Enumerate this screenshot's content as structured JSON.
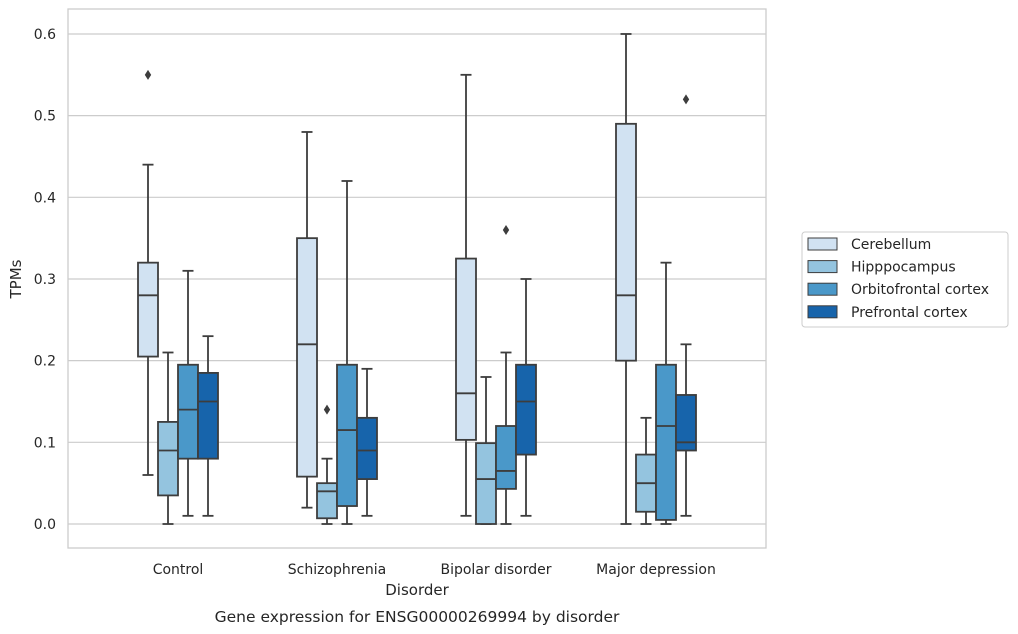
{
  "chart_data": {
    "type": "box",
    "caption": "Gene expression for ENSG00000269994 by disorder",
    "xlabel": "Disorder",
    "ylabel": "TPMs",
    "ylim": [
      -0.03,
      0.63
    ],
    "yticks": [
      0.0,
      0.1,
      0.2,
      0.3,
      0.4,
      0.5,
      0.6
    ],
    "ytick_labels": [
      "0.0",
      "0.1",
      "0.2",
      "0.3",
      "0.4",
      "0.5",
      "0.6"
    ],
    "grid": "horizontal",
    "legend_position": "right",
    "categories": [
      "Control",
      "Schizophrenia",
      "Bipolar disorder",
      "Major depression"
    ],
    "series": [
      {
        "name": "Cerebellum",
        "color": "#d1e2f2",
        "boxes": [
          {
            "whislo": 0.06,
            "q1": 0.205,
            "med": 0.28,
            "q3": 0.32,
            "whishi": 0.44,
            "fliers": [
              0.55
            ]
          },
          {
            "whislo": 0.02,
            "q1": 0.058,
            "med": 0.22,
            "q3": 0.35,
            "whishi": 0.48,
            "fliers": []
          },
          {
            "whislo": 0.01,
            "q1": 0.103,
            "med": 0.16,
            "q3": 0.325,
            "whishi": 0.55,
            "fliers": []
          },
          {
            "whislo": 0.0,
            "q1": 0.2,
            "med": 0.28,
            "q3": 0.49,
            "whishi": 0.6,
            "fliers": []
          }
        ]
      },
      {
        "name": "Hipppocampus",
        "color": "#94c4df",
        "boxes": [
          {
            "whislo": 0.0,
            "q1": 0.035,
            "med": 0.09,
            "q3": 0.125,
            "whishi": 0.21,
            "fliers": []
          },
          {
            "whislo": 0.0,
            "q1": 0.007,
            "med": 0.04,
            "q3": 0.05,
            "whishi": 0.08,
            "fliers": [
              0.14
            ]
          },
          {
            "whislo": 0.0,
            "q1": 0.0,
            "med": 0.055,
            "q3": 0.099,
            "whishi": 0.18,
            "fliers": []
          },
          {
            "whislo": 0.0,
            "q1": 0.015,
            "med": 0.05,
            "q3": 0.085,
            "whishi": 0.13,
            "fliers": []
          }
        ]
      },
      {
        "name": "Orbitofrontal cortex",
        "color": "#4a98c9",
        "boxes": [
          {
            "whislo": 0.01,
            "q1": 0.08,
            "med": 0.14,
            "q3": 0.195,
            "whishi": 0.31,
            "fliers": []
          },
          {
            "whislo": 0.0,
            "q1": 0.022,
            "med": 0.115,
            "q3": 0.195,
            "whishi": 0.42,
            "fliers": []
          },
          {
            "whislo": 0.0,
            "q1": 0.043,
            "med": 0.065,
            "q3": 0.12,
            "whishi": 0.21,
            "fliers": [
              0.36
            ]
          },
          {
            "whislo": 0.0,
            "q1": 0.005,
            "med": 0.12,
            "q3": 0.195,
            "whishi": 0.32,
            "fliers": []
          }
        ]
      },
      {
        "name": "Prefrontal cortex",
        "color": "#1764ab",
        "boxes": [
          {
            "whislo": 0.01,
            "q1": 0.08,
            "med": 0.15,
            "q3": 0.185,
            "whishi": 0.23,
            "fliers": []
          },
          {
            "whislo": 0.01,
            "q1": 0.055,
            "med": 0.09,
            "q3": 0.13,
            "whishi": 0.19,
            "fliers": []
          },
          {
            "whislo": 0.01,
            "q1": 0.085,
            "med": 0.15,
            "q3": 0.195,
            "whishi": 0.3,
            "fliers": []
          },
          {
            "whislo": 0.01,
            "q1": 0.09,
            "med": 0.1,
            "q3": 0.158,
            "whishi": 0.22,
            "fliers": [
              0.52
            ]
          }
        ]
      }
    ]
  }
}
